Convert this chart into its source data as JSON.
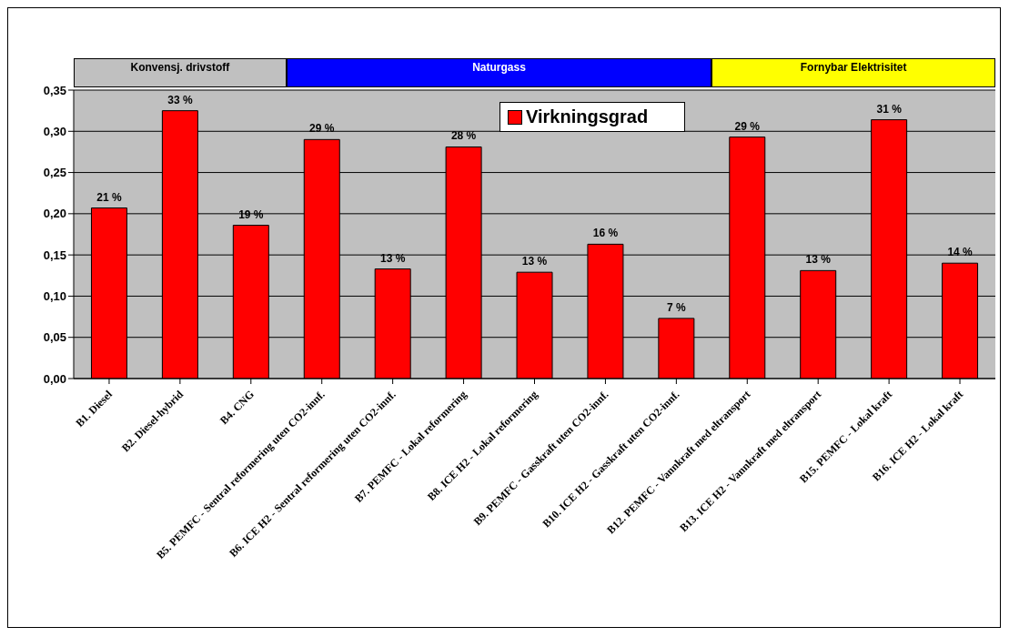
{
  "chart_data": {
    "type": "bar",
    "categories": [
      "B1. Diesel",
      "B2. Diesel-hybrid",
      "B4. CNG",
      "B5. PEMFC - Sentral reformering uten CO2-innf.",
      "B6. ICE H2 - Sentral reformering uten CO2-innf.",
      "B7. PEMFC - Lokal reformering",
      "B8. ICE H2 - Lokal reformering",
      "B9. PEMFC - Gasskraft uten CO2-innf.",
      "B10. ICE H2 - Gasskraft uten CO2-innf.",
      "B12. PEMFC - Vannkraft med eltransport",
      "B13. ICE H2 - Vannkraft med eltransport",
      "B15. PEMFC - Lokal kraft",
      "B16. ICE H2 - Lokal kraft"
    ],
    "series": [
      {
        "name": "Virkningsgrad",
        "color": "#ff0000",
        "values": [
          0.207,
          0.325,
          0.186,
          0.29,
          0.133,
          0.281,
          0.129,
          0.163,
          0.073,
          0.293,
          0.131,
          0.314,
          0.14
        ],
        "value_labels": [
          "21 %",
          "33 %",
          "19 %",
          "29 %",
          "13 %",
          "28 %",
          "13 %",
          "16 %",
          "7 %",
          "29 %",
          "13 %",
          "31 %",
          "14 %"
        ]
      }
    ],
    "ylim": [
      0,
      0.35
    ],
    "yticks": [
      {
        "value": 0,
        "label": "0,00"
      },
      {
        "value": 0.05,
        "label": "0,05"
      },
      {
        "value": 0.1,
        "label": "0,10"
      },
      {
        "value": 0.15,
        "label": "0,15"
      },
      {
        "value": 0.2,
        "label": "0,20"
      },
      {
        "value": 0.25,
        "label": "0,25"
      },
      {
        "value": 0.3,
        "label": "0,30"
      },
      {
        "value": 0.35,
        "label": "0,35"
      }
    ],
    "annotations": [
      "Konvensj. drivstoff",
      "Naturgass",
      "Fornybar Elektrisitet"
    ],
    "grid": "y",
    "legend": "top"
  }
}
